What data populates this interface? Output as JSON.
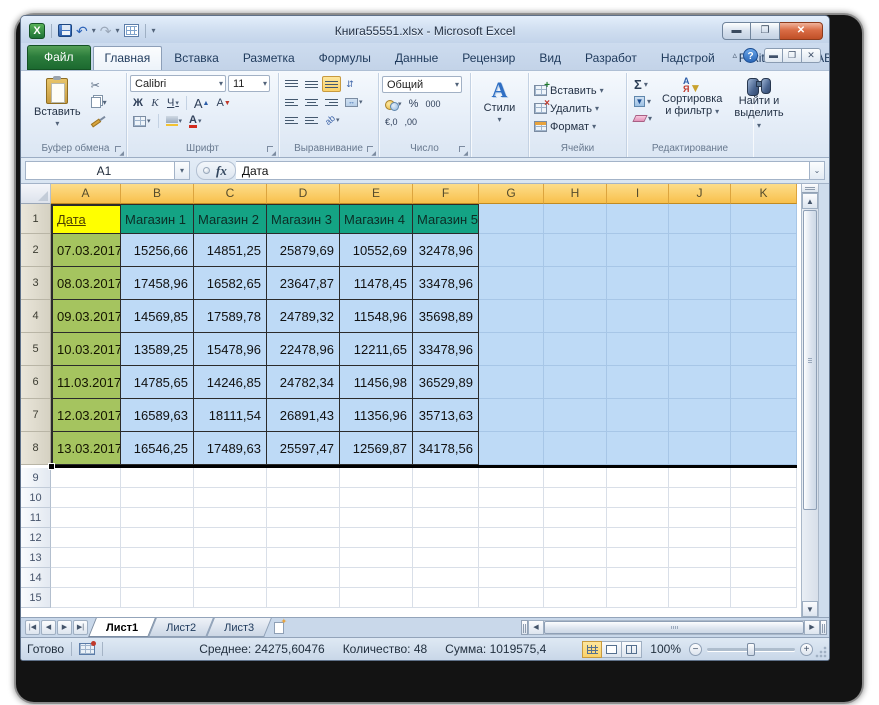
{
  "window": {
    "title": "Книга55551.xlsx  -  Microsoft Excel"
  },
  "icons": {
    "excel_logo": "X",
    "undo": "↶",
    "redo": "↷",
    "help": "?"
  },
  "ribbon_tabs": [
    {
      "label": "Файл",
      "file": true,
      "active": false
    },
    {
      "label": "Главная",
      "file": false,
      "active": true
    },
    {
      "label": "Вставка",
      "file": false,
      "active": false
    },
    {
      "label": "Разметка",
      "file": false,
      "active": false
    },
    {
      "label": "Формулы",
      "file": false,
      "active": false
    },
    {
      "label": "Данные",
      "file": false,
      "active": false
    },
    {
      "label": "Рецензир",
      "file": false,
      "active": false
    },
    {
      "label": "Вид",
      "file": false,
      "active": false
    },
    {
      "label": "Разработ",
      "file": false,
      "active": false
    },
    {
      "label": "Надстрой",
      "file": false,
      "active": false
    },
    {
      "label": "Foxit PDF",
      "file": false,
      "active": false
    },
    {
      "label": "ABBYY PDF",
      "file": false,
      "active": false
    }
  ],
  "ribbon": {
    "clipboard": {
      "label": "Буфер обмена",
      "paste": "Вставить"
    },
    "font": {
      "label": "Шрифт",
      "name": "Calibri",
      "size": "11",
      "bold": "Ж",
      "italic": "К",
      "underline": "Ч",
      "grow": "А",
      "shrink": "А",
      "color_a": "А"
    },
    "alignment": {
      "label": "Выравнивание"
    },
    "number": {
      "label": "Число",
      "format": "Общий",
      "percent": "%",
      "thousands": "000",
      "dec_inc": "€,0",
      "dec_dec": ",00"
    },
    "styles": {
      "label": "Стили",
      "icon_letter": "А"
    },
    "cells": {
      "label": "Ячейки",
      "insert": "Вставить",
      "delete": "Удалить",
      "format": "Формат"
    },
    "editing": {
      "label": "Редактирование",
      "sigma": "Σ",
      "sort_line1": "Сортировка",
      "sort_line2": "и фильтр",
      "find_line1": "Найти и",
      "find_line2": "выделить",
      "sort_a": "А",
      "sort_z": "Я"
    }
  },
  "formula_bar": {
    "name_box": "A1",
    "fx_label": "fx",
    "content": "Дата"
  },
  "sheet": {
    "columns": [
      "A",
      "B",
      "C",
      "D",
      "E",
      "F",
      "G",
      "H",
      "I",
      "J",
      "K"
    ],
    "header_row": [
      "Дата",
      "Магазин 1",
      "Магазин 2",
      "Магазин 3",
      "Магазин 4",
      "Магазин 5"
    ],
    "data_rows": [
      [
        "07.03.2017",
        "15256,66",
        "14851,25",
        "25879,69",
        "10552,69",
        "32478,96"
      ],
      [
        "08.03.2017",
        "17458,96",
        "16582,65",
        "23647,87",
        "11478,45",
        "33478,96"
      ],
      [
        "09.03.2017",
        "14569,85",
        "17589,78",
        "24789,32",
        "11548,96",
        "35698,89"
      ],
      [
        "10.03.2017",
        "13589,25",
        "15478,96",
        "22478,96",
        "12211,65",
        "33478,96"
      ],
      [
        "11.03.2017",
        "14785,65",
        "14246,85",
        "24782,34",
        "11456,98",
        "36529,89"
      ],
      [
        "12.03.2017",
        "16589,63",
        "18111,54",
        "26891,43",
        "11356,96",
        "35713,63"
      ],
      [
        "13.03.2017",
        "16546,25",
        "17489,63",
        "25597,47",
        "12569,87",
        "34178,56"
      ]
    ],
    "empty_row_count": 7,
    "first_row_number": 1
  },
  "sheet_tabs": {
    "tabs": [
      "Лист1",
      "Лист2",
      "Лист3"
    ],
    "active_index": 0
  },
  "status_bar": {
    "mode": "Готово",
    "average_label": "Среднее:",
    "average": "24275,60476",
    "count_label": "Количество:",
    "count": "48",
    "sum_label": "Сумма:",
    "sum": "1019575,4",
    "zoom": "100%"
  },
  "colors": {
    "selection_fill": "#bedaf6",
    "header_selected": "#fac95f",
    "a1_fill": "#ffff00",
    "date_fill": "#a5c45f",
    "shop_header_fill": "#14a384",
    "file_tab_green": "#2c7d3c",
    "close_button_red": "#c04f27"
  }
}
